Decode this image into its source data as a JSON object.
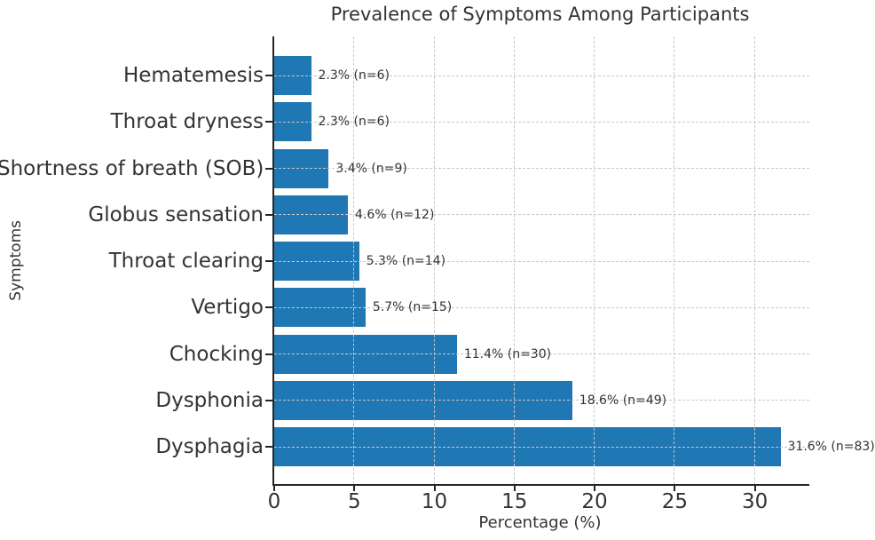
{
  "figure": {
    "title": "Prevalence of Symptoms Among Participants",
    "xlabel": "Percentage (%)",
    "ylabel": "Symptoms"
  },
  "chart_data": {
    "type": "bar",
    "orientation": "horizontal",
    "title": "Prevalence of Symptoms Among Participants",
    "xlabel": "Percentage (%)",
    "ylabel": "Symptoms",
    "categories": [
      "Hematemesis",
      "Throat dryness",
      "Shortness of breath (SOB)",
      "Globus sensation",
      "Throat clearing",
      "Vertigo",
      "Chocking",
      "Dysphonia",
      "Dysphagia"
    ],
    "values": [
      2.3,
      2.3,
      3.4,
      4.6,
      5.3,
      5.7,
      11.4,
      18.6,
      31.6
    ],
    "counts": [
      6,
      6,
      9,
      12,
      14,
      15,
      30,
      49,
      83
    ],
    "bar_labels": [
      "2.3% (n=6)",
      "2.3% (n=6)",
      "3.4% (n=9)",
      "4.6% (n=12)",
      "5.3% (n=14)",
      "5.7% (n=15)",
      "11.4% (n=30)",
      "18.6% (n=49)",
      "31.6% (n=83)"
    ],
    "xlim": [
      0,
      33.4
    ],
    "xticks": [
      0,
      5,
      10,
      15,
      20,
      25,
      30
    ],
    "grid": "dashed",
    "legend": "none",
    "colors": {
      "bar": "#1f77b4",
      "grid": "#c7c7c7",
      "spine": "#262626",
      "text": "#333333"
    }
  }
}
